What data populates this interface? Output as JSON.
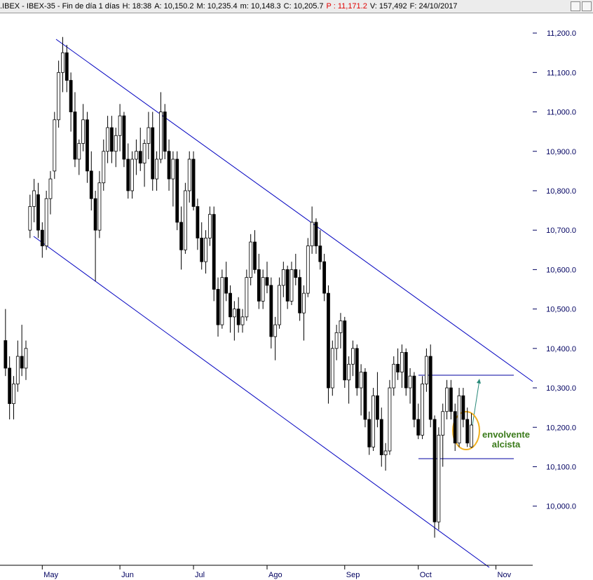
{
  "header": {
    "parts": [
      {
        "text": ".IBEX - IBEX-35 - Fin de día 1 días",
        "color": "#000000"
      },
      {
        "text": "H: 18:38",
        "color": "#000000"
      },
      {
        "text": "A: 10,150.2",
        "color": "#000000"
      },
      {
        "text": "M: 10,235.4",
        "color": "#000000"
      },
      {
        "text": "m: 10,148.3",
        "color": "#000000"
      },
      {
        "text": "C: 10,205.7",
        "color": "#000000"
      },
      {
        "text": "P : 11,171.2",
        "color": "#e00000"
      },
      {
        "text": "V: 157,492",
        "color": "#000000"
      },
      {
        "text": "F: 24/10/2017",
        "color": "#000000"
      }
    ]
  },
  "chart_data": {
    "type": "candlestick",
    "up_color": "#ffffff",
    "down_color": "#000000",
    "candles": [
      [
        10420,
        10500,
        10330,
        10350
      ],
      [
        10350,
        10380,
        10220,
        10260
      ],
      [
        10260,
        10330,
        10220,
        10310
      ],
      [
        10310,
        10420,
        10290,
        10380
      ],
      [
        10380,
        10460,
        10330,
        10350
      ],
      [
        10350,
        10420,
        10320,
        10400
      ],
      [
        10700,
        10790,
        10680,
        10760
      ],
      [
        10760,
        10830,
        10720,
        10800
      ],
      [
        10790,
        10820,
        10680,
        10700
      ],
      [
        10700,
        10720,
        10630,
        10660
      ],
      [
        10660,
        10800,
        10650,
        10780
      ],
      [
        10780,
        10850,
        10740,
        10830
      ],
      [
        10850,
        11000,
        10830,
        10980
      ],
      [
        10980,
        11130,
        10960,
        11100
      ],
      [
        11100,
        11190,
        11050,
        11150
      ],
      [
        11150,
        11170,
        11050,
        11080
      ],
      [
        11080,
        11100,
        10950,
        11000
      ],
      [
        11000,
        11050,
        10860,
        10880
      ],
      [
        10880,
        10930,
        10840,
        10920
      ],
      [
        10920,
        11020,
        10900,
        10980
      ],
      [
        10980,
        11000,
        10820,
        10850
      ],
      [
        10850,
        10900,
        10750,
        10780
      ],
      [
        10780,
        10800,
        10570,
        10700
      ],
      [
        10700,
        10850,
        10680,
        10820
      ],
      [
        10820,
        10930,
        10800,
        10900
      ],
      [
        10900,
        10990,
        10870,
        10960
      ],
      [
        10960,
        10990,
        10870,
        10900
      ],
      [
        10900,
        10960,
        10860,
        10940
      ],
      [
        10940,
        11020,
        10900,
        10990
      ],
      [
        10990,
        11000,
        10860,
        10880
      ],
      [
        10880,
        10920,
        10780,
        10800
      ],
      [
        10800,
        10900,
        10780,
        10880
      ],
      [
        10880,
        10930,
        10840,
        10900
      ],
      [
        10900,
        10960,
        10850,
        10870
      ],
      [
        10870,
        10930,
        10810,
        10920
      ],
      [
        10920,
        11000,
        10880,
        10960
      ],
      [
        10960,
        11000,
        10800,
        10830
      ],
      [
        10830,
        10900,
        10800,
        10880
      ],
      [
        10880,
        11050,
        10870,
        11000
      ],
      [
        11000,
        11020,
        10880,
        10900
      ],
      [
        10900,
        10930,
        10800,
        10830
      ],
      [
        10830,
        10900,
        10760,
        10880
      ],
      [
        10880,
        10900,
        10700,
        10720
      ],
      [
        10720,
        10760,
        10600,
        10650
      ],
      [
        10650,
        10820,
        10640,
        10800
      ],
      [
        10800,
        10900,
        10770,
        10880
      ],
      [
        10880,
        10900,
        10750,
        10760
      ],
      [
        10760,
        10780,
        10650,
        10680
      ],
      [
        10680,
        10720,
        10600,
        10620
      ],
      [
        10620,
        10700,
        10590,
        10680
      ],
      [
        10680,
        10760,
        10660,
        10740
      ],
      [
        10740,
        10760,
        10520,
        10550
      ],
      [
        10550,
        10580,
        10430,
        10460
      ],
      [
        10460,
        10600,
        10450,
        10580
      ],
      [
        10580,
        10620,
        10520,
        10540
      ],
      [
        10540,
        10560,
        10440,
        10480
      ],
      [
        10480,
        10520,
        10420,
        10500
      ],
      [
        10500,
        10530,
        10440,
        10460
      ],
      [
        10460,
        10500,
        10440,
        10480
      ],
      [
        10480,
        10600,
        10470,
        10580
      ],
      [
        10580,
        10690,
        10560,
        10670
      ],
      [
        10670,
        10700,
        10590,
        10600
      ],
      [
        10600,
        10640,
        10500,
        10520
      ],
      [
        10520,
        10600,
        10500,
        10580
      ],
      [
        10580,
        10620,
        10540,
        10560
      ],
      [
        10560,
        10580,
        10400,
        10430
      ],
      [
        10430,
        10480,
        10370,
        10460
      ],
      [
        10460,
        10580,
        10450,
        10560
      ],
      [
        10560,
        10620,
        10530,
        10600
      ],
      [
        10600,
        10610,
        10500,
        10520
      ],
      [
        10520,
        10620,
        10510,
        10600
      ],
      [
        10600,
        10640,
        10560,
        10580
      ],
      [
        10580,
        10600,
        10470,
        10490
      ],
      [
        10490,
        10560,
        10420,
        10540
      ],
      [
        10540,
        10680,
        10530,
        10660
      ],
      [
        10660,
        10760,
        10640,
        10720
      ],
      [
        10720,
        10730,
        10640,
        10660
      ],
      [
        10660,
        10700,
        10600,
        10620
      ],
      [
        10620,
        10640,
        10520,
        10540
      ],
      [
        10540,
        10560,
        10260,
        10300
      ],
      [
        10300,
        10420,
        10280,
        10400
      ],
      [
        10400,
        10460,
        10370,
        10440
      ],
      [
        10440,
        10490,
        10400,
        10470
      ],
      [
        10470,
        10480,
        10300,
        10320
      ],
      [
        10320,
        10380,
        10260,
        10360
      ],
      [
        10360,
        10420,
        10330,
        10400
      ],
      [
        10400,
        10410,
        10280,
        10300
      ],
      [
        10300,
        10360,
        10230,
        10340
      ],
      [
        10340,
        10350,
        10200,
        10220
      ],
      [
        10220,
        10240,
        10130,
        10150
      ],
      [
        10150,
        10300,
        10140,
        10280
      ],
      [
        10280,
        10340,
        10200,
        10220
      ],
      [
        10220,
        10250,
        10100,
        10130
      ],
      [
        10130,
        10160,
        10090,
        10140
      ],
      [
        10140,
        10320,
        10130,
        10300
      ],
      [
        10300,
        10380,
        10280,
        10360
      ],
      [
        10360,
        10400,
        10320,
        10340
      ],
      [
        10340,
        10410,
        10300,
        10390
      ],
      [
        10390,
        10400,
        10280,
        10300
      ],
      [
        10300,
        10350,
        10260,
        10330
      ],
      [
        10330,
        10340,
        10200,
        10220
      ],
      [
        10220,
        10260,
        10170,
        10180
      ],
      [
        10180,
        10330,
        10170,
        10310
      ],
      [
        10310,
        10400,
        10290,
        10380
      ],
      [
        10380,
        10410,
        10200,
        10220
      ],
      [
        10220,
        10230,
        9920,
        9960
      ],
      [
        9960,
        10200,
        9940,
        10180
      ],
      [
        10180,
        10260,
        10100,
        10240
      ],
      [
        10240,
        10320,
        10220,
        10300
      ],
      [
        10300,
        10320,
        10220,
        10240
      ],
      [
        10240,
        10260,
        10140,
        10160
      ],
      [
        10160,
        10300,
        10150,
        10280
      ],
      [
        10280,
        10300,
        10200,
        10220
      ],
      [
        10220,
        10250,
        10150,
        10160
      ],
      [
        10150.2,
        10235.4,
        10148.3,
        10205.7
      ]
    ],
    "xlim": [
      -1,
      129
    ],
    "xticks": [
      {
        "value": 9,
        "label": "May"
      },
      {
        "value": 28,
        "label": "Jun"
      },
      {
        "value": 46,
        "label": "Jul"
      },
      {
        "value": 64,
        "label": "Ago"
      },
      {
        "value": 83,
        "label": "Sep"
      },
      {
        "value": 101,
        "label": "Oct"
      },
      {
        "value": 120,
        "label": "Nov"
      }
    ],
    "ylim": [
      9850,
      11250
    ],
    "yticks": [
      {
        "value": 10000,
        "label": "10,000.0"
      },
      {
        "value": 10100,
        "label": "10,100.0"
      },
      {
        "value": 10200,
        "label": "10,200.0"
      },
      {
        "value": 10300,
        "label": "10,300.0"
      },
      {
        "value": 10400,
        "label": "10,400.0"
      },
      {
        "value": 10500,
        "label": "10,500.0"
      },
      {
        "value": 10600,
        "label": "10,600.0"
      },
      {
        "value": 10700,
        "label": "10,700.0"
      },
      {
        "value": 10800,
        "label": "10,800.0"
      },
      {
        "value": 10900,
        "label": "10,900.0"
      },
      {
        "value": 11000,
        "label": "11,000.0"
      },
      {
        "value": 11100,
        "label": "11,100.0"
      },
      {
        "value": 11200,
        "label": "11,200.0"
      }
    ],
    "annotation": [
      "envolvente",
      "alcista"
    ]
  }
}
